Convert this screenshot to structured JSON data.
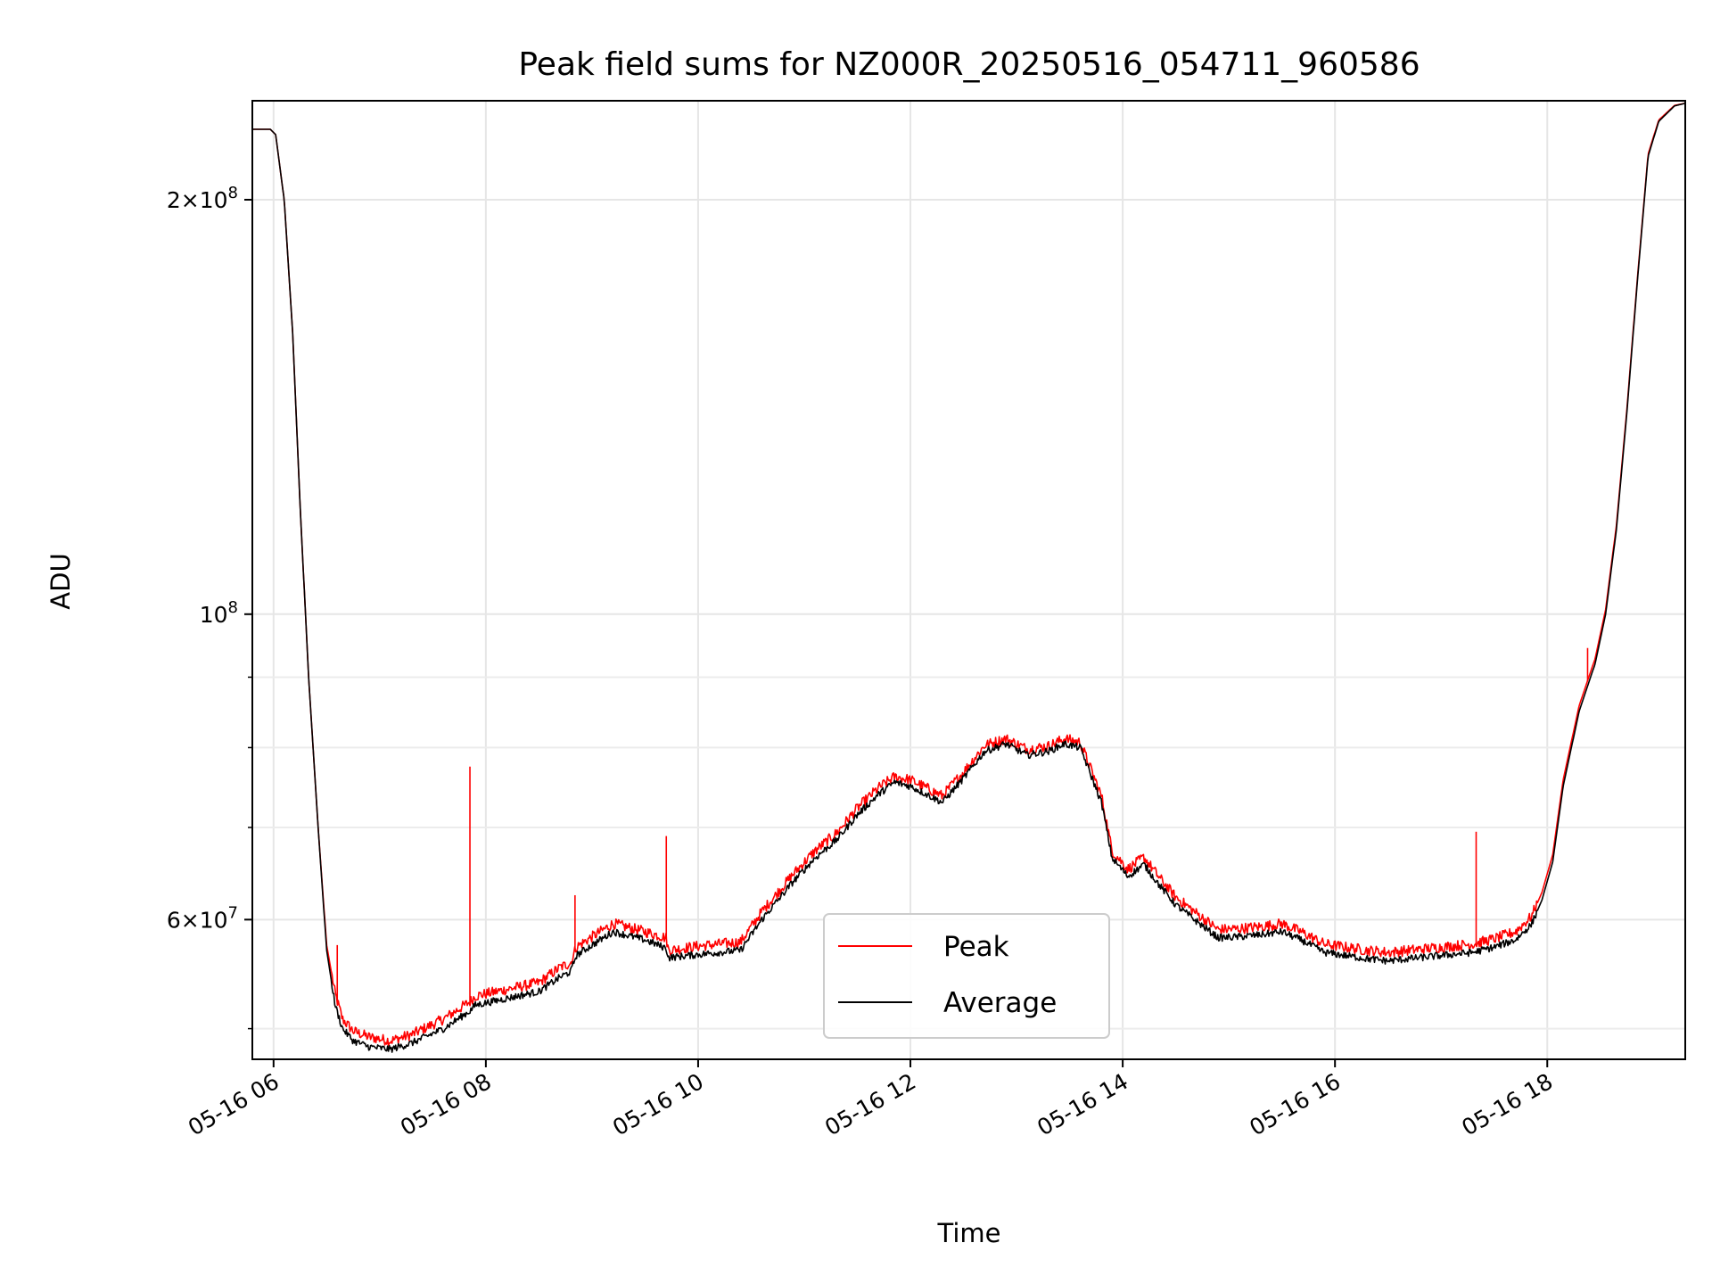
{
  "chart_data": {
    "type": "line",
    "title": "Peak field sums for NZ000R_20250516_054711_960586",
    "xlabel": "Time",
    "ylabel": "ADU",
    "yscale": "log",
    "xlim_hours": [
      5.8,
      19.3
    ],
    "ylim": [
      47500000,
      236000000
    ],
    "x_ticks": [
      {
        "hour": 6,
        "label": "05-16 06"
      },
      {
        "hour": 8,
        "label": "05-16 08"
      },
      {
        "hour": 10,
        "label": "05-16 10"
      },
      {
        "hour": 12,
        "label": "05-16 12"
      },
      {
        "hour": 14,
        "label": "05-16 14"
      },
      {
        "hour": 16,
        "label": "05-16 16"
      },
      {
        "hour": 18,
        "label": "05-16 18"
      }
    ],
    "y_major_ticks": [
      {
        "value": 60000000,
        "mantissa": "6",
        "base": "10",
        "exp": "7"
      },
      {
        "value": 100000000,
        "mantissa": "",
        "base": "10",
        "exp": "8"
      },
      {
        "value": 200000000,
        "mantissa": "2",
        "base": "10",
        "exp": "8"
      }
    ],
    "y_minor_ticks": [
      50000000,
      70000000,
      80000000,
      90000000
    ],
    "grid": true,
    "legend": {
      "position": "lower-center",
      "entries": [
        "Peak",
        "Average"
      ]
    },
    "series": [
      {
        "name": "Average",
        "color": "#000000",
        "x": [
          5.8,
          5.97,
          6.02,
          6.1,
          6.18,
          6.25,
          6.33,
          6.42,
          6.5,
          6.58,
          6.65,
          6.75,
          6.9,
          7.1,
          7.3,
          7.6,
          7.85,
          7.9,
          8.2,
          8.5,
          8.7,
          8.8,
          8.85,
          9.0,
          9.2,
          9.5,
          9.7,
          9.72,
          10.0,
          10.4,
          10.6,
          10.9,
          11.1,
          11.3,
          11.5,
          11.7,
          11.85,
          12.0,
          12.15,
          12.3,
          12.5,
          12.7,
          12.9,
          13.1,
          13.3,
          13.45,
          13.6,
          13.8,
          13.9,
          14.05,
          14.2,
          14.35,
          14.5,
          14.7,
          14.9,
          15.1,
          15.3,
          15.5,
          15.7,
          15.9,
          16.1,
          16.3,
          16.5,
          16.7,
          16.9,
          17.1,
          17.3,
          17.5,
          17.7,
          17.85,
          17.95,
          18.05,
          18.15,
          18.3,
          18.45,
          18.55,
          18.65,
          18.75,
          18.85,
          18.95,
          19.05,
          19.2,
          19.3
        ],
        "y": [
          225000000,
          225000000,
          223000000,
          200000000,
          160000000,
          120000000,
          90000000,
          70000000,
          57000000,
          52000000,
          50000000,
          49000000,
          48500000,
          48300000,
          48800000,
          50000000,
          51500000,
          52000000,
          52600000,
          53200000,
          54500000,
          55000000,
          56500000,
          57500000,
          58800000,
          58000000,
          57200000,
          56300000,
          56600000,
          57000000,
          60000000,
          64000000,
          66500000,
          68500000,
          71500000,
          74000000,
          75500000,
          75000000,
          74000000,
          73000000,
          76000000,
          79500000,
          80500000,
          79000000,
          79500000,
          80500000,
          80000000,
          73000000,
          66500000,
          64500000,
          65800000,
          63500000,
          61500000,
          59800000,
          58200000,
          58300000,
          58500000,
          58800000,
          57900000,
          56800000,
          56500000,
          56200000,
          56000000,
          56200000,
          56400000,
          56600000,
          56800000,
          57300000,
          58000000,
          59500000,
          62000000,
          66000000,
          75000000,
          85000000,
          92000000,
          100000000,
          115000000,
          140000000,
          175000000,
          215000000,
          228000000,
          234000000,
          235000000
        ]
      },
      {
        "name": "Peak",
        "color": "#ff0000",
        "x": [
          5.8,
          5.97,
          6.02,
          6.1,
          6.18,
          6.25,
          6.33,
          6.42,
          6.5,
          6.58,
          6.65,
          6.75,
          6.9,
          7.1,
          7.3,
          7.6,
          7.85,
          7.9,
          8.2,
          8.5,
          8.7,
          8.8,
          8.85,
          9.0,
          9.2,
          9.5,
          9.7,
          9.72,
          10.0,
          10.4,
          10.6,
          10.9,
          11.1,
          11.3,
          11.5,
          11.7,
          11.85,
          12.0,
          12.15,
          12.3,
          12.5,
          12.7,
          12.9,
          13.1,
          13.3,
          13.45,
          13.6,
          13.8,
          13.9,
          14.05,
          14.2,
          14.35,
          14.5,
          14.7,
          14.9,
          15.1,
          15.3,
          15.5,
          15.7,
          15.9,
          16.1,
          16.3,
          16.5,
          16.7,
          16.9,
          17.1,
          17.3,
          17.5,
          17.7,
          17.85,
          17.95,
          18.05,
          18.15,
          18.3,
          18.45,
          18.55,
          18.65,
          18.75,
          18.85,
          18.95,
          19.05,
          19.2,
          19.3
        ],
        "y": [
          225000000,
          225000000,
          223000000,
          200000000,
          160000000,
          120000000,
          90000000,
          70000000,
          57500000,
          53000000,
          50800000,
          49800000,
          49300000,
          49000000,
          49500000,
          50800000,
          52300000,
          52800000,
          53400000,
          54000000,
          55400000,
          55800000,
          57300000,
          58300000,
          59600000,
          58800000,
          58200000,
          57000000,
          57400000,
          57800000,
          60800000,
          64800000,
          67300000,
          69300000,
          72300000,
          74800000,
          76200000,
          75800000,
          74800000,
          73800000,
          76800000,
          80300000,
          81200000,
          79800000,
          80200000,
          81200000,
          80700000,
          73800000,
          67300000,
          65300000,
          66600000,
          64300000,
          62300000,
          60600000,
          59000000,
          59100000,
          59300000,
          59600000,
          58700000,
          57600000,
          57300000,
          57000000,
          56800000,
          57000000,
          57200000,
          57400000,
          57600000,
          58100000,
          58800000,
          60300000,
          62800000,
          66800000,
          75800000,
          85800000,
          92800000,
          100800000,
          115800000,
          140800000,
          175800000,
          215800000,
          228500000,
          234200000,
          235000000
        ]
      }
    ],
    "peak_spikes": [
      {
        "x": 6.6,
        "y": 57500000
      },
      {
        "x": 7.85,
        "y": 77500000
      },
      {
        "x": 8.84,
        "y": 62500000
      },
      {
        "x": 9.7,
        "y": 69000000
      },
      {
        "x": 17.33,
        "y": 69500000
      },
      {
        "x": 18.38,
        "y": 94500000
      }
    ]
  }
}
